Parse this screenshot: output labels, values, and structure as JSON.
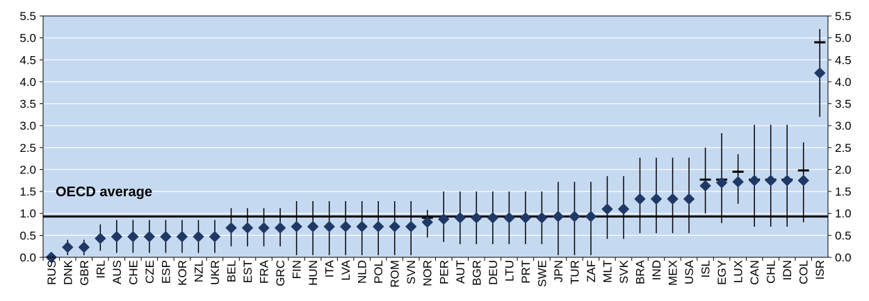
{
  "chart_data": {
    "type": "scatter",
    "title": "",
    "xlabel": "",
    "ylabel": "",
    "ylim": [
      0,
      5.5
    ],
    "yticks": [
      "0.0",
      "0.5",
      "1.0",
      "1.5",
      "2.0",
      "2.5",
      "3.0",
      "3.5",
      "4.0",
      "4.5",
      "5.0",
      "5.5"
    ],
    "grid": true,
    "legend": "none",
    "colors": {
      "plot_bg": "#c5d9f1",
      "grid": "#ffffff",
      "marker": "#1f3864",
      "line": "#000000"
    },
    "categories": [
      "RUS",
      "DNK",
      "GBR",
      "IRL",
      "AUS",
      "CHE",
      "CZE",
      "ESP",
      "KOR",
      "NZL",
      "UKR",
      "BEL",
      "EST",
      "FRA",
      "GRC",
      "FIN",
      "HUN",
      "ITA",
      "LVA",
      "NLD",
      "POL",
      "ROM",
      "SVN",
      "NOR",
      "PER",
      "AUT",
      "BGR",
      "DEU",
      "LTU",
      "PRT",
      "SWE",
      "JPN",
      "TUR",
      "ZAF",
      "MLT",
      "SVK",
      "BRA",
      "IND",
      "MEX",
      "USA",
      "ISL",
      "EGY",
      "LUX",
      "CAN",
      "CHL",
      "IDN",
      "COL",
      "ISR"
    ],
    "values": [
      0.0,
      0.23,
      0.23,
      0.43,
      0.47,
      0.47,
      0.47,
      0.47,
      0.47,
      0.47,
      0.47,
      0.67,
      0.67,
      0.67,
      0.67,
      0.7,
      0.7,
      0.7,
      0.7,
      0.7,
      0.7,
      0.7,
      0.7,
      0.8,
      0.87,
      0.9,
      0.9,
      0.9,
      0.9,
      0.9,
      0.9,
      0.93,
      0.93,
      0.93,
      1.1,
      1.1,
      1.33,
      1.33,
      1.33,
      1.33,
      1.63,
      1.7,
      1.72,
      1.75,
      1.75,
      1.75,
      1.75,
      4.2
    ],
    "ranges": [
      [
        0,
        0
      ],
      [
        0.05,
        0.4
      ],
      [
        0.05,
        0.4
      ],
      [
        0.15,
        0.75
      ],
      [
        0.1,
        0.85
      ],
      [
        0.1,
        0.85
      ],
      [
        0.1,
        0.85
      ],
      [
        0.1,
        0.85
      ],
      [
        0.1,
        0.85
      ],
      [
        0.1,
        0.85
      ],
      [
        0.1,
        0.85
      ],
      [
        0.25,
        1.12
      ],
      [
        0.25,
        1.12
      ],
      [
        0.25,
        1.12
      ],
      [
        0.25,
        1.12
      ],
      [
        0.05,
        1.28
      ],
      [
        0.05,
        1.28
      ],
      [
        0.05,
        1.28
      ],
      [
        0.05,
        1.28
      ],
      [
        0.05,
        1.28
      ],
      [
        0.05,
        1.28
      ],
      [
        0.05,
        1.28
      ],
      [
        0.05,
        1.28
      ],
      [
        0.45,
        1.08
      ],
      [
        0.35,
        1.5
      ],
      [
        0.3,
        1.5
      ],
      [
        0.3,
        1.5
      ],
      [
        0.3,
        1.5
      ],
      [
        0.3,
        1.5
      ],
      [
        0.3,
        1.5
      ],
      [
        0.3,
        1.5
      ],
      [
        0.05,
        1.72
      ],
      [
        0.05,
        1.72
      ],
      [
        0.05,
        1.72
      ],
      [
        0.42,
        1.85
      ],
      [
        0.42,
        1.85
      ],
      [
        0.55,
        2.27
      ],
      [
        0.55,
        2.27
      ],
      [
        0.55,
        2.27
      ],
      [
        0.55,
        2.27
      ],
      [
        1.0,
        2.5
      ],
      [
        0.78,
        2.83
      ],
      [
        1.22,
        2.35
      ],
      [
        0.7,
        3.02
      ],
      [
        0.7,
        3.02
      ],
      [
        0.7,
        3.02
      ],
      [
        0.8,
        2.62
      ],
      [
        3.2,
        5.2
      ]
    ],
    "markers": [
      {
        "category": "NOR",
        "value": 0.9
      },
      {
        "category": "ISL",
        "value": 1.77
      },
      {
        "category": "EGY",
        "value": 1.77
      },
      {
        "category": "LUX",
        "value": 1.95
      },
      {
        "category": "CAN",
        "value": 1.77
      },
      {
        "category": "CHL",
        "value": 1.77
      },
      {
        "category": "IDN",
        "value": 1.77
      },
      {
        "category": "COL",
        "value": 1.98
      },
      {
        "category": "ISR",
        "value": 4.9
      }
    ],
    "reference_line": {
      "label": "OECD average",
      "value": 0.93
    }
  }
}
